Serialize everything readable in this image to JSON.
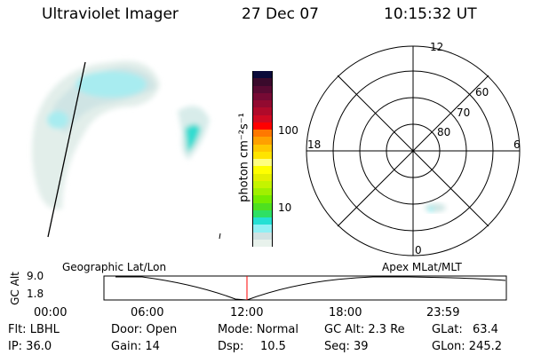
{
  "header": {
    "instrument": "Ultraviolet Imager",
    "date": "27 Dec 07",
    "time": "10:15:32 UT"
  },
  "colorbar": {
    "label": "photon cm⁻²s⁻¹",
    "ticks": [
      "100",
      "10"
    ],
    "colors": [
      "#0a0a3a",
      "#3a0a2c",
      "#580a32",
      "#760a34",
      "#920a30",
      "#b00a2a",
      "#d00a22",
      "#ff0000",
      "#ff7800",
      "#ffa000",
      "#ffc800",
      "#ffe400",
      "#ffff80",
      "#ffff00",
      "#e4f000",
      "#c4f400",
      "#a0f000",
      "#74ec00",
      "#4ee020",
      "#2ee064",
      "#24e0d4",
      "#90f0f4",
      "#d0e2e2",
      "#e8f2ec"
    ]
  },
  "polar": {
    "labels": {
      "top": "12",
      "bottom": "0",
      "left": "18",
      "right": "6"
    },
    "rings": [
      "60",
      "70",
      "80"
    ]
  },
  "timeline": {
    "left_label": "Geographic Lat/Lon",
    "right_label": "Apex MLat/MLT",
    "y_axis_label": "GC Alt",
    "y_ticks": [
      "9.0",
      "1.8"
    ],
    "x_ticks": [
      "00:00",
      "06:00",
      "12:00",
      "18:00",
      "23:59"
    ],
    "marker_color": "#ff0000"
  },
  "status": {
    "filter": "Flt: LBHL",
    "ip": "IP: 36.0",
    "door": "Door: Open",
    "gain": "Gain: 14",
    "mode": "Mode: Normal",
    "dsp_label": "Dsp:",
    "dsp_value": "10.5",
    "gc_alt": "GC Alt: 2.3 Re",
    "seq": "Seq: 39",
    "glat_label": "GLat:",
    "glat_value": "63.4",
    "glon": "GLon: 245.2"
  }
}
